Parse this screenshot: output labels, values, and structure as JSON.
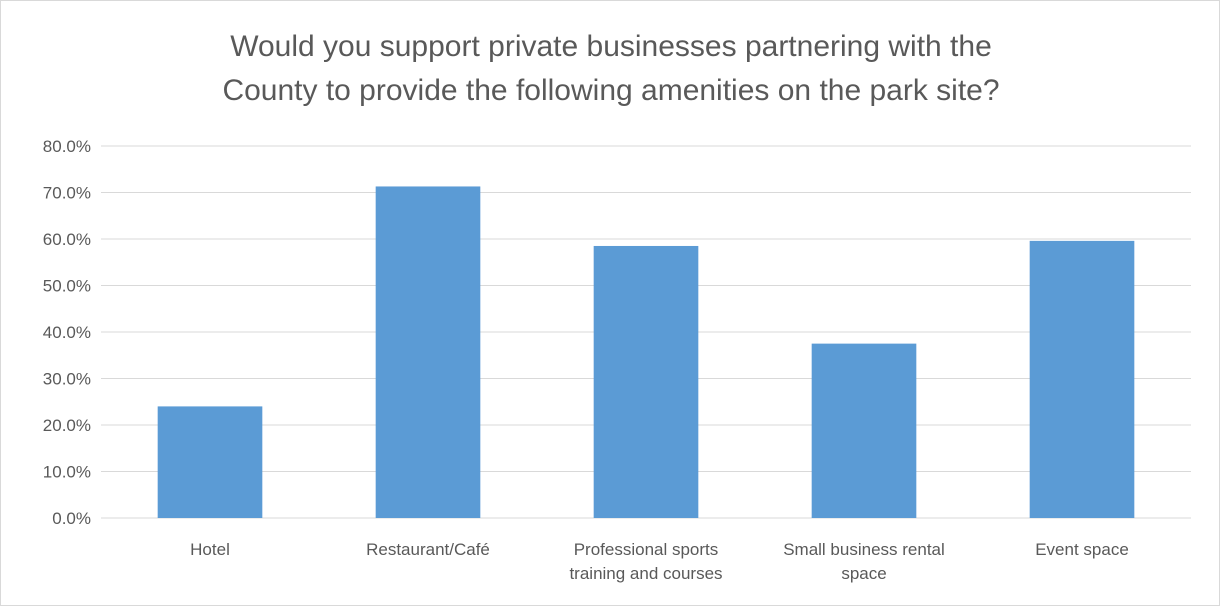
{
  "chart_data": {
    "type": "bar",
    "title_lines": [
      "Would you support private businesses partnering with the",
      "County to provide the following amenities on the park site?"
    ],
    "categories": [
      [
        "Hotel"
      ],
      [
        "Restaurant/Café"
      ],
      [
        "Professional sports",
        "training and courses"
      ],
      [
        "Small business rental",
        "space"
      ],
      [
        "Event space"
      ]
    ],
    "values": [
      24.0,
      71.3,
      58.5,
      37.5,
      59.6
    ],
    "ylim": [
      0,
      80
    ],
    "yticks": [
      "0.0%",
      "10.0%",
      "20.0%",
      "30.0%",
      "40.0%",
      "50.0%",
      "60.0%",
      "70.0%",
      "80.0%"
    ],
    "grid": true,
    "bar_color": "#5b9bd5",
    "grid_color": "#d9d9d9"
  }
}
